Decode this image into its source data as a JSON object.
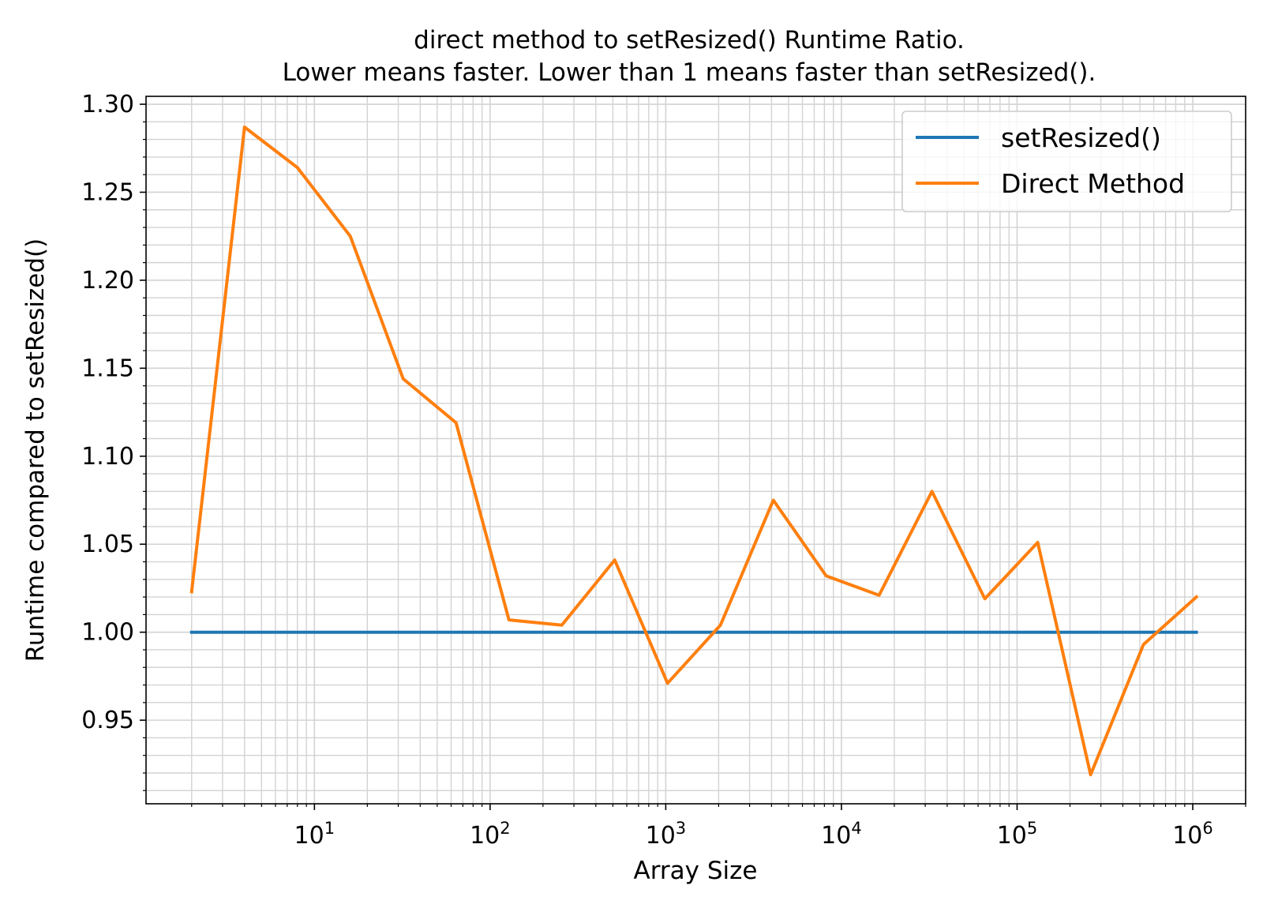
{
  "chart_data": {
    "type": "line",
    "title": [
      "direct method to setResized() Runtime Ratio.",
      "Lower means faster. Lower than 1 means faster than setResized()."
    ],
    "xlabel": "Array Size",
    "ylabel": "Runtime compared to setResized()",
    "xscale": "log",
    "xlim": [
      1.1,
      2000000
    ],
    "ylim": [
      0.9025,
      1.3045
    ],
    "grid": "major and minor",
    "legend_position": "top-right",
    "x_ticks": [
      {
        "value": 10,
        "base": "10",
        "exp": "1"
      },
      {
        "value": 100,
        "base": "10",
        "exp": "2"
      },
      {
        "value": 1000,
        "base": "10",
        "exp": "3"
      },
      {
        "value": 10000,
        "base": "10",
        "exp": "4"
      },
      {
        "value": 100000,
        "base": "10",
        "exp": "5"
      },
      {
        "value": 1000000,
        "base": "10",
        "exp": "6"
      }
    ],
    "y_ticks": [
      "0.95",
      "1.00",
      "1.05",
      "1.10",
      "1.15",
      "1.20",
      "1.25",
      "1.30"
    ],
    "x": [
      2,
      4,
      8,
      16,
      32,
      64,
      128,
      256,
      512,
      1024,
      2048,
      4096,
      8192,
      16384,
      32768,
      65536,
      131072,
      262144,
      524288,
      1048576
    ],
    "series": [
      {
        "name": "setResized()",
        "color": "#1f77b4",
        "values": [
          1,
          1,
          1,
          1,
          1,
          1,
          1,
          1,
          1,
          1,
          1,
          1,
          1,
          1,
          1,
          1,
          1,
          1,
          1,
          1
        ]
      },
      {
        "name": "Direct Method",
        "color": "#ff7f0e",
        "values": [
          1.023,
          1.287,
          1.264,
          1.225,
          1.144,
          1.119,
          1.007,
          1.004,
          1.041,
          0.971,
          1.004,
          1.075,
          1.032,
          1.021,
          1.08,
          1.019,
          1.051,
          0.919,
          0.993,
          1.02
        ]
      }
    ]
  }
}
